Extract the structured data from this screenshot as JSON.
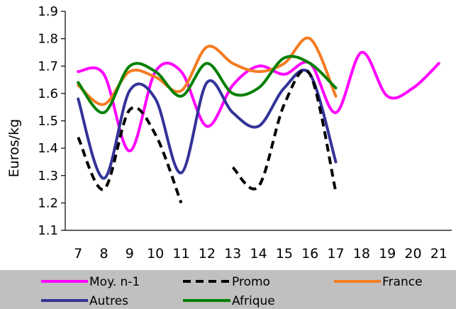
{
  "chart_data": {
    "type": "line",
    "title": "",
    "xlabel": "",
    "ylabel": "Euros/kg",
    "x": [
      7,
      8,
      9,
      10,
      11,
      12,
      13,
      14,
      15,
      16,
      17,
      18,
      19,
      20,
      21
    ],
    "xlim": [
      6.5,
      21.5
    ],
    "ylim": [
      1.1,
      1.9
    ],
    "yticks": [
      "1.1",
      "1.2",
      "1.3",
      "1.4",
      "1.5",
      "1.6",
      "1.7",
      "1.8",
      "1.9"
    ],
    "xticks": [
      "7",
      "8",
      "9",
      "10",
      "11",
      "12",
      "13",
      "14",
      "15",
      "16",
      "17",
      "18",
      "19",
      "20",
      "21"
    ],
    "grid": false,
    "legend_position": "bottom",
    "series": [
      {
        "name": "Moy. n-1",
        "color": "#ff00ff",
        "dash": false,
        "points": [
          [
            7,
            1.68
          ],
          [
            8,
            1.67
          ],
          [
            9,
            1.39
          ],
          [
            10,
            1.68
          ],
          [
            11,
            1.68
          ],
          [
            12,
            1.48
          ],
          [
            13,
            1.63
          ],
          [
            14,
            1.7
          ],
          [
            15,
            1.67
          ],
          [
            16,
            1.71
          ],
          [
            17,
            1.53
          ],
          [
            18,
            1.75
          ],
          [
            19,
            1.59
          ],
          [
            20,
            1.62
          ],
          [
            21,
            1.71
          ]
        ]
      },
      {
        "name": "Promo",
        "color": "#000000",
        "dash": true,
        "points": [
          [
            7,
            1.44
          ],
          [
            8,
            1.25
          ],
          [
            9,
            1.54
          ],
          [
            10,
            1.45
          ],
          [
            11,
            1.2
          ],
          [
            null,
            null
          ],
          [
            13,
            1.33
          ],
          [
            14,
            1.26
          ],
          [
            15,
            1.56
          ],
          [
            16,
            1.67
          ],
          [
            17,
            1.24
          ]
        ]
      },
      {
        "name": "France",
        "color": "#f47b20",
        "dash": false,
        "points": [
          [
            7,
            1.63
          ],
          [
            8,
            1.56
          ],
          [
            9,
            1.68
          ],
          [
            10,
            1.66
          ],
          [
            11,
            1.61
          ],
          [
            12,
            1.77
          ],
          [
            13,
            1.71
          ],
          [
            14,
            1.68
          ],
          [
            15,
            1.71
          ],
          [
            16,
            1.8
          ],
          [
            17,
            1.59
          ]
        ]
      },
      {
        "name": "Autres",
        "color": "#333399",
        "dash": false,
        "points": [
          [
            7,
            1.58
          ],
          [
            8,
            1.29
          ],
          [
            9,
            1.61
          ],
          [
            10,
            1.58
          ],
          [
            11,
            1.31
          ],
          [
            12,
            1.64
          ],
          [
            13,
            1.53
          ],
          [
            14,
            1.48
          ],
          [
            15,
            1.62
          ],
          [
            16,
            1.67
          ],
          [
            17,
            1.35
          ]
        ]
      },
      {
        "name": "Afrique",
        "color": "#008000",
        "dash": false,
        "points": [
          [
            7,
            1.64
          ],
          [
            8,
            1.53
          ],
          [
            9,
            1.7
          ],
          [
            10,
            1.68
          ],
          [
            11,
            1.59
          ],
          [
            12,
            1.71
          ],
          [
            13,
            1.6
          ],
          [
            14,
            1.62
          ],
          [
            15,
            1.73
          ],
          [
            16,
            1.71
          ],
          [
            17,
            1.62
          ]
        ]
      }
    ]
  }
}
